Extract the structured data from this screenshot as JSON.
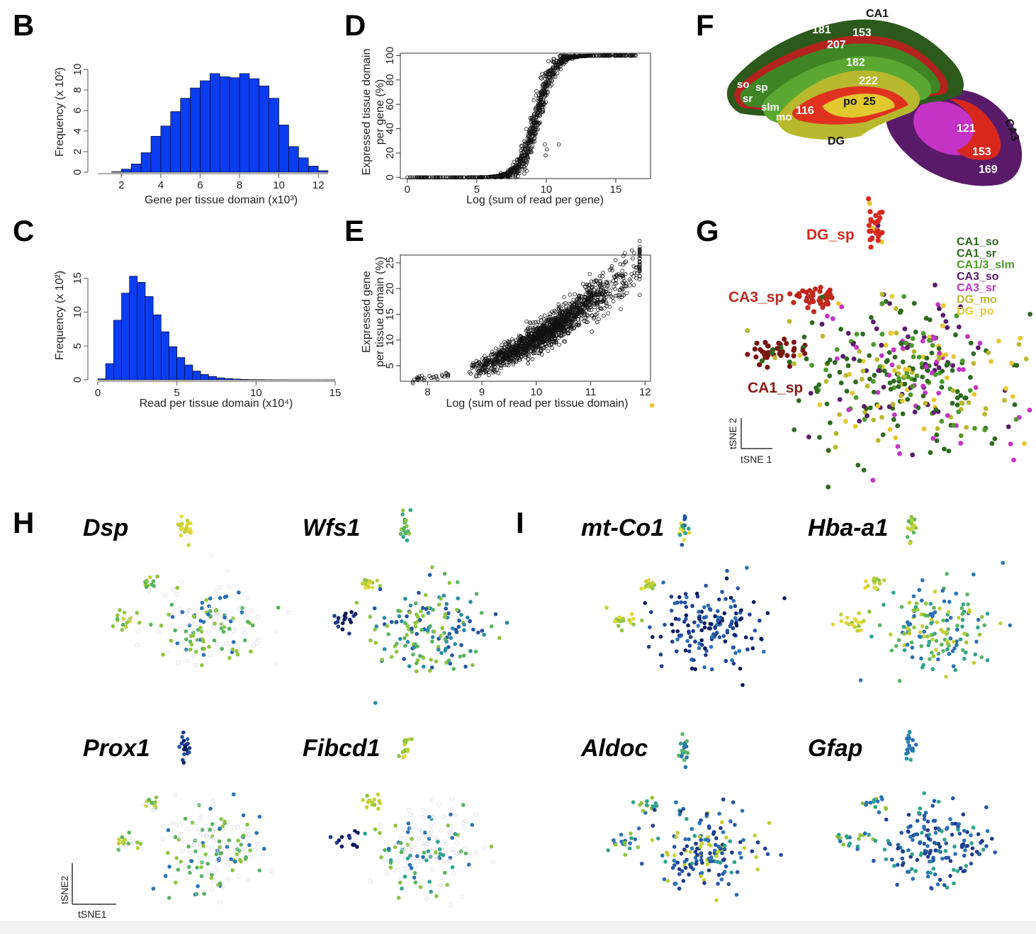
{
  "panels": {
    "B": {
      "letter": "B"
    },
    "C": {
      "letter": "C"
    },
    "D": {
      "letter": "D"
    },
    "E": {
      "letter": "E"
    },
    "F": {
      "letter": "F"
    },
    "G": {
      "letter": "G"
    },
    "H": {
      "letter": "H"
    },
    "I": {
      "letter": "I"
    }
  },
  "axes": {
    "B": {
      "ylabel": "Frequency (x 10²)",
      "xlabel": "Gene per tissue domain (x10³)"
    },
    "C": {
      "ylabel": "Frequency (x 10²)",
      "xlabel": "Read per tissue domain (x10⁴)"
    },
    "D": {
      "ylabel_line1": "Expressed tissue domain",
      "ylabel_line2": "per gene (%)",
      "xlabel": "Log (sum of read per gene)"
    },
    "E": {
      "ylabel_line1": "Expressed gene",
      "ylabel_line2": "per tissue domain (%)",
      "xlabel": "Log (sum of read per tissue domain)"
    }
  },
  "hippocampus": {
    "numbers": [
      "181",
      "153",
      "207",
      "182",
      "222",
      "116",
      "25",
      "121",
      "153",
      "169"
    ],
    "regions": [
      "CA1",
      "CA3",
      "DG",
      "so",
      "sp",
      "sr",
      "slm",
      "mo",
      "po"
    ]
  },
  "tsne_g": {
    "cluster_labels": [
      "DG_sp",
      "CA3_sp",
      "CA1_sp"
    ],
    "legend": [
      {
        "label": "CA1_so",
        "color": "#2d6a1e"
      },
      {
        "label": "CA1_sr",
        "color": "#2d6a1e"
      },
      {
        "label": "CA1/3_slm",
        "color": "#4d9a2a"
      },
      {
        "label": "CA3_so",
        "color": "#5a1a6a"
      },
      {
        "label": "CA3_sr",
        "color": "#c433c4"
      },
      {
        "label": "DG_mo",
        "color": "#b8b82e"
      },
      {
        "label": "DG_po",
        "color": "#e8c830"
      }
    ],
    "axis1": "tSNE 1",
    "axis2": "tSNE 2"
  },
  "genes_h": [
    "Dsp",
    "Wfs1",
    "Prox1",
    "Fibcd1"
  ],
  "genes_i": [
    "mt-Co1",
    "Hba-a1",
    "Aldoc",
    "Gfap"
  ],
  "tsne_h": {
    "axis1": "tSNE1",
    "axis2": "tSNE2"
  },
  "chart_data": [
    {
      "type": "bar",
      "panel": "B",
      "xlabel": "Gene per tissue domain (x10³)",
      "ylabel": "Frequency (x 10²)",
      "x_ticks": [
        "2",
        "4",
        "6",
        "8",
        "10",
        "12"
      ],
      "y_ticks": [
        "0",
        "2",
        "4",
        "6",
        "8",
        "10"
      ],
      "xlim": [
        0.8,
        12.5
      ],
      "ylim": [
        0,
        10
      ],
      "bin_start": 1.5,
      "bin_width": 0.5,
      "values": [
        0.05,
        0.3,
        0.8,
        1.9,
        3.5,
        4.5,
        5.9,
        7.2,
        8.2,
        8.9,
        9.6,
        9.3,
        9.2,
        9.6,
        9.1,
        8.4,
        7.2,
        4.6,
        2.5,
        1.4,
        0.6,
        0.15
      ]
    },
    {
      "type": "bar",
      "panel": "C",
      "xlabel": "Read per tissue domain (x10⁴)",
      "ylabel": "Frequency (x 10²)",
      "x_ticks": [
        "0",
        "5",
        "10",
        "15"
      ],
      "y_ticks": [
        "0",
        "5",
        "10",
        "15"
      ],
      "xlim": [
        0,
        15
      ],
      "ylim": [
        0,
        16
      ],
      "bin_start": 0,
      "bin_width": 0.5,
      "values": [
        0.15,
        2.4,
        8.8,
        12.8,
        15.3,
        14.4,
        12.3,
        9.6,
        7.1,
        4.9,
        3.3,
        2.2,
        1.3,
        0.8,
        0.5,
        0.3,
        0.2,
        0.12,
        0.08,
        0.05,
        0.04,
        0.03,
        0.02,
        0.02,
        0.01,
        0.01,
        0.01,
        0.01,
        0.01,
        0.01
      ]
    },
    {
      "type": "scatter",
      "panel": "D",
      "xlabel": "Log (sum of read per gene)",
      "ylabel": "Expressed tissue domain per gene (%)",
      "x_ticks": [
        "0",
        "5",
        "10",
        "15"
      ],
      "y_ticks": [
        "0",
        "20",
        "40",
        "60",
        "80",
        "100"
      ],
      "xlim": [
        -0.5,
        17.5
      ],
      "ylim": [
        -1,
        102
      ],
      "curve": {
        "form": "logistic",
        "midpoint": 9.3,
        "steepness": 1.7,
        "max": 100
      },
      "outliers": [
        [
          9.9,
          27
        ],
        [
          10.9,
          27
        ],
        [
          9.95,
          18
        ],
        [
          10.05,
          23
        ]
      ]
    },
    {
      "type": "scatter",
      "panel": "E",
      "xlabel": "Log (sum of read per tissue domain)",
      "ylabel": "Expressed gene per tissue domain (%)",
      "x_ticks": [
        "8",
        "9",
        "10",
        "11",
        "12"
      ],
      "y_ticks": [
        "5",
        "10",
        "15",
        "20",
        "25"
      ],
      "xlim": [
        7.5,
        12.1
      ],
      "ylim": [
        2,
        26.5
      ],
      "trend": [
        [
          7.7,
          2.2
        ],
        [
          8.3,
          3.1
        ],
        [
          9.0,
          5.2
        ],
        [
          9.5,
          7.8
        ],
        [
          10.0,
          10.9
        ],
        [
          10.5,
          14.2
        ],
        [
          11.0,
          18.3
        ],
        [
          11.5,
          22.0
        ],
        [
          11.9,
          26.0
        ]
      ]
    }
  ]
}
